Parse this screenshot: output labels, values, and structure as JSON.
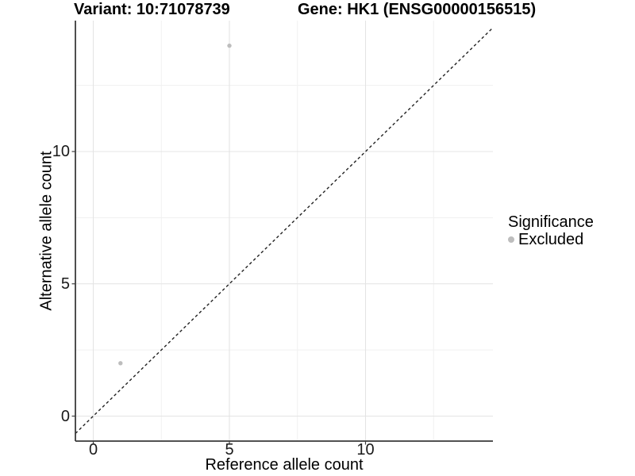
{
  "chart_data": {
    "type": "scatter",
    "title_left": "Variant: 10:71078739",
    "title_right": "Gene: HK1 (ENSG00000156515)",
    "xlabel": "Reference allele count",
    "ylabel": "Alternative allele count",
    "xlim": [
      -0.7,
      14.7
    ],
    "ylim": [
      -0.95,
      15.0
    ],
    "x_ticks": [
      0,
      5,
      10
    ],
    "y_ticks": [
      0,
      5,
      10
    ],
    "x_minor_ticks": [
      2.5,
      7.5,
      12.5
    ],
    "y_minor_ticks": [
      2.5,
      7.5,
      12.5
    ],
    "grid": true,
    "legend_position": "right",
    "series": [
      {
        "name": "Excluded",
        "color": "#bdbdbd",
        "points": [
          {
            "x": 1,
            "y": 2
          },
          {
            "x": 5,
            "y": 14
          }
        ]
      }
    ],
    "reference_line": {
      "type": "identity",
      "slope": 1,
      "intercept": 0,
      "style": "dashed"
    },
    "legend": {
      "title": "Significance",
      "items": [
        {
          "label": "Excluded",
          "color": "#bdbdbd"
        }
      ]
    }
  },
  "colors": {
    "background": "#ffffff",
    "point": "#bdbdbd",
    "grid_major": "#e4e4e4",
    "grid_minor": "#f0f0f0",
    "axis_line": "#3a3a3a",
    "tick_mark": "#404040",
    "dashed_line": "#222222",
    "text": "#000000"
  }
}
